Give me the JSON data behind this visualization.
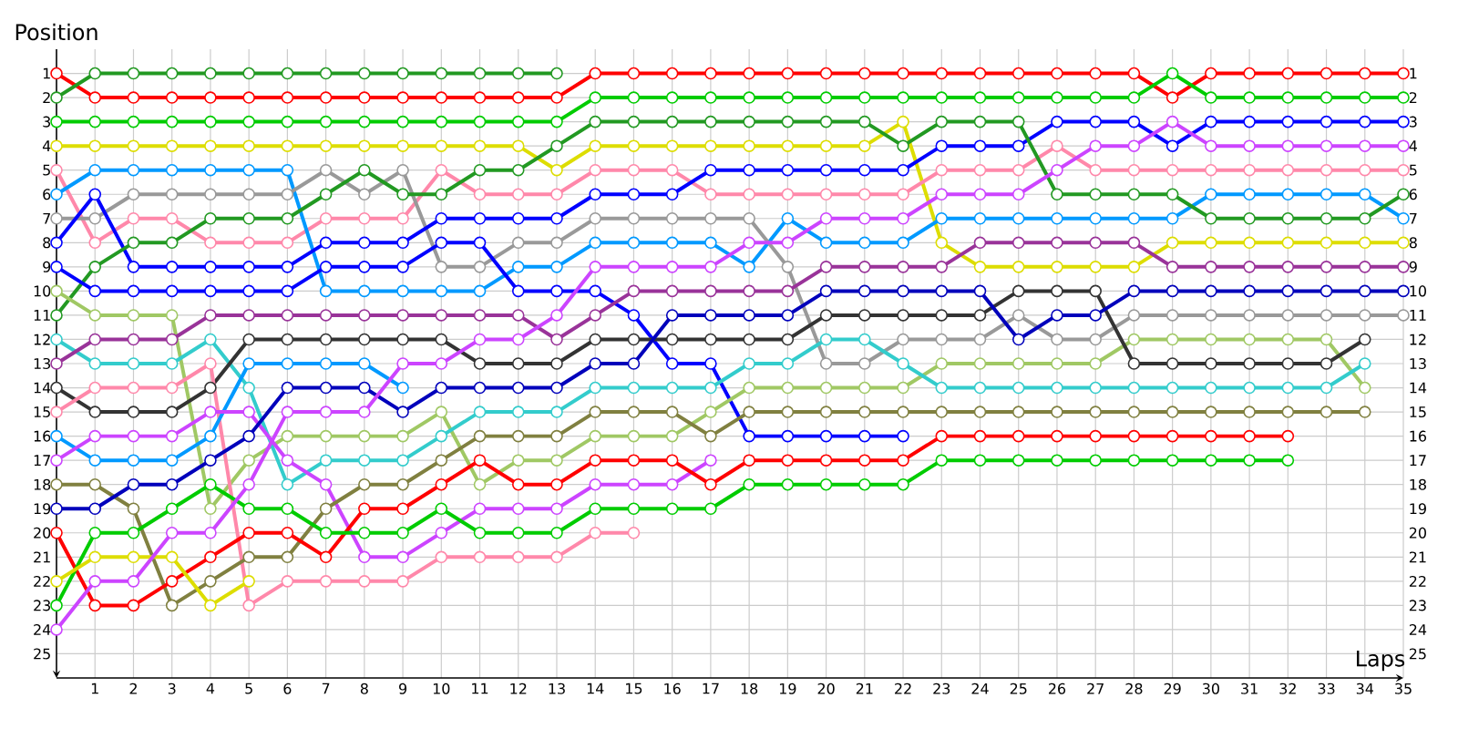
{
  "chart_data": {
    "type": "line",
    "xlabel": "Laps",
    "ylabel": "Position",
    "x": [
      0,
      1,
      2,
      3,
      4,
      5,
      6,
      7,
      8,
      9,
      10,
      11,
      12,
      13,
      14,
      15,
      16,
      17,
      18,
      19,
      20,
      21,
      22,
      23,
      24,
      25,
      26,
      27,
      28,
      29,
      30,
      31,
      32,
      33,
      34,
      35
    ],
    "xlim": [
      0,
      35
    ],
    "xticks": [
      1,
      2,
      3,
      4,
      5,
      6,
      7,
      8,
      9,
      10,
      11,
      12,
      13,
      14,
      15,
      16,
      17,
      18,
      19,
      20,
      21,
      22,
      23,
      24,
      25,
      26,
      27,
      28,
      29,
      30,
      31,
      32,
      33,
      34,
      35
    ],
    "ylim": [
      26,
      0
    ],
    "yticks": [
      1,
      2,
      3,
      4,
      5,
      6,
      7,
      8,
      9,
      10,
      11,
      12,
      13,
      14,
      15,
      16,
      17,
      18,
      19,
      20,
      21,
      22,
      23,
      24,
      25
    ],
    "y2lim": [
      26,
      0
    ],
    "y2ticks": [
      1,
      2,
      3,
      4,
      5,
      6,
      7,
      8,
      9,
      10,
      11,
      12,
      13,
      14,
      15,
      16,
      17,
      18,
      19,
      20,
      21,
      22,
      23,
      24,
      25
    ],
    "grid": true,
    "marker": "circle",
    "line_style": "solid",
    "series": [
      {
        "color": "#ff0000",
        "values": [
          1,
          2,
          2,
          2,
          2,
          2,
          2,
          2,
          2,
          2,
          2,
          2,
          2,
          2,
          1,
          1,
          1,
          1,
          1,
          1,
          1,
          1,
          1,
          1,
          1,
          1,
          1,
          1,
          1,
          2,
          1,
          1,
          1,
          1,
          1,
          1
        ]
      },
      {
        "color": "#229922",
        "values": [
          2,
          1,
          1,
          1,
          1,
          1,
          1,
          1,
          1,
          1,
          1,
          1,
          1,
          1,
          null,
          null,
          null,
          null,
          null,
          null,
          null,
          null,
          null,
          null,
          null,
          null,
          null,
          null,
          null,
          null,
          null,
          null,
          null,
          null,
          null,
          null
        ]
      },
      {
        "color": "#00cc00",
        "values": [
          3,
          3,
          3,
          3,
          3,
          3,
          3,
          3,
          3,
          3,
          3,
          3,
          3,
          3,
          2,
          2,
          2,
          2,
          2,
          2,
          2,
          2,
          2,
          2,
          2,
          2,
          2,
          2,
          2,
          1,
          2,
          2,
          2,
          2,
          2,
          2
        ]
      },
      {
        "color": "#dddd00",
        "values": [
          4,
          4,
          4,
          4,
          4,
          4,
          4,
          4,
          4,
          4,
          4,
          4,
          4,
          5,
          4,
          4,
          4,
          4,
          4,
          4,
          4,
          4,
          3,
          8,
          9,
          9,
          9,
          9,
          9,
          8,
          8,
          8,
          8,
          8,
          8,
          8
        ]
      },
      {
        "color": "#ff88aa",
        "values": [
          5,
          8,
          7,
          7,
          8,
          8,
          8,
          7,
          7,
          7,
          5,
          6,
          6,
          6,
          5,
          5,
          5,
          6,
          6,
          6,
          6,
          6,
          6,
          5,
          5,
          5,
          4,
          5,
          5,
          5,
          5,
          5,
          5,
          5,
          5,
          5
        ]
      },
      {
        "color": "#0099ff",
        "values": [
          6,
          5,
          5,
          5,
          5,
          5,
          5,
          10,
          10,
          10,
          10,
          10,
          9,
          9,
          8,
          8,
          8,
          8,
          9,
          7,
          8,
          8,
          8,
          7,
          7,
          7,
          7,
          7,
          7,
          7,
          6,
          6,
          6,
          6,
          6,
          7
        ]
      },
      {
        "color": "#999999",
        "values": [
          7,
          7,
          6,
          6,
          6,
          6,
          6,
          5,
          6,
          5,
          9,
          9,
          8,
          8,
          7,
          7,
          7,
          7,
          7,
          9,
          13,
          13,
          12,
          12,
          12,
          11,
          12,
          12,
          11,
          11,
          11,
          11,
          11,
          11,
          11,
          11
        ]
      },
      {
        "color": "#0000ff",
        "values": [
          8,
          6,
          9,
          9,
          9,
          9,
          9,
          8,
          8,
          8,
          7,
          7,
          7,
          7,
          6,
          6,
          6,
          5,
          5,
          5,
          5,
          5,
          5,
          4,
          4,
          4,
          3,
          3,
          3,
          4,
          3,
          3,
          3,
          3,
          3,
          3
        ]
      },
      {
        "color": "#229922",
        "values": [
          11,
          9,
          8,
          8,
          7,
          7,
          7,
          6,
          5,
          6,
          6,
          5,
          5,
          4,
          3,
          3,
          3,
          3,
          3,
          3,
          3,
          3,
          4,
          3,
          3,
          3,
          6,
          6,
          6,
          6,
          7,
          7,
          7,
          7,
          7,
          6
        ]
      },
      {
        "color": "#0000ff",
        "values": [
          9,
          10,
          10,
          10,
          10,
          10,
          10,
          9,
          9,
          9,
          8,
          8,
          10,
          10,
          10,
          11,
          13,
          13,
          16,
          16,
          16,
          16,
          16,
          null,
          null,
          null,
          null,
          null,
          null,
          null,
          null,
          null,
          null,
          null,
          null,
          null
        ]
      },
      {
        "color": "#a0c864",
        "values": [
          10,
          11,
          11,
          11,
          19,
          17,
          16,
          16,
          16,
          16,
          15,
          18,
          17,
          17,
          16,
          16,
          16,
          15,
          14,
          14,
          14,
          14,
          14,
          13,
          13,
          13,
          13,
          13,
          12,
          12,
          12,
          12,
          12,
          12,
          14,
          null
        ]
      },
      {
        "color": "#33cccc",
        "values": [
          12,
          13,
          13,
          13,
          12,
          14,
          18,
          17,
          17,
          17,
          16,
          15,
          15,
          15,
          14,
          14,
          14,
          14,
          13,
          13,
          12,
          12,
          13,
          14,
          14,
          14,
          14,
          14,
          14,
          14,
          14,
          14,
          14,
          14,
          13,
          null
        ]
      },
      {
        "color": "#993399",
        "values": [
          13,
          12,
          12,
          12,
          11,
          11,
          11,
          11,
          11,
          11,
          11,
          11,
          11,
          12,
          11,
          10,
          10,
          10,
          10,
          10,
          9,
          9,
          9,
          9,
          8,
          8,
          8,
          8,
          8,
          9,
          9,
          9,
          9,
          9,
          9,
          9
        ]
      },
      {
        "color": "#333333",
        "values": [
          14,
          15,
          15,
          15,
          14,
          12,
          12,
          12,
          12,
          12,
          12,
          13,
          13,
          13,
          12,
          12,
          12,
          12,
          12,
          12,
          11,
          11,
          11,
          11,
          11,
          10,
          10,
          10,
          13,
          13,
          13,
          13,
          13,
          13,
          12,
          null
        ]
      },
      {
        "color": "#ff88aa",
        "values": [
          15,
          14,
          14,
          14,
          13,
          23,
          22,
          22,
          22,
          22,
          21,
          21,
          21,
          21,
          20,
          20,
          null,
          null,
          null,
          null,
          null,
          null,
          null,
          null,
          null,
          null,
          null,
          null,
          null,
          null,
          null,
          null,
          null,
          null,
          null,
          null
        ]
      },
      {
        "color": "#0099ff",
        "values": [
          16,
          17,
          17,
          17,
          16,
          13,
          13,
          13,
          13,
          14,
          null,
          null,
          null,
          null,
          null,
          null,
          null,
          null,
          null,
          null,
          null,
          null,
          null,
          null,
          null,
          null,
          null,
          null,
          null,
          null,
          null,
          null,
          null,
          null,
          null,
          null
        ]
      },
      {
        "color": "#cc44ff",
        "values": [
          17,
          16,
          16,
          16,
          15,
          15,
          17,
          18,
          21,
          21,
          20,
          19,
          19,
          19,
          18,
          18,
          18,
          17,
          null,
          null,
          null,
          null,
          null,
          null,
          null,
          null,
          null,
          null,
          null,
          null,
          null,
          null,
          null,
          null,
          null,
          null
        ]
      },
      {
        "color": "#808040",
        "values": [
          18,
          18,
          19,
          23,
          22,
          21,
          21,
          19,
          18,
          18,
          17,
          16,
          16,
          16,
          15,
          15,
          15,
          16,
          15,
          15,
          15,
          15,
          15,
          15,
          15,
          15,
          15,
          15,
          15,
          15,
          15,
          15,
          15,
          15,
          15,
          null
        ]
      },
      {
        "color": "#0000bb",
        "values": [
          19,
          19,
          18,
          18,
          17,
          16,
          14,
          14,
          14,
          15,
          14,
          14,
          14,
          14,
          13,
          13,
          11,
          11,
          11,
          11,
          10,
          10,
          10,
          10,
          10,
          12,
          11,
          11,
          10,
          10,
          10,
          10,
          10,
          10,
          10,
          10
        ]
      },
      {
        "color": "#ff0000",
        "values": [
          20,
          23,
          23,
          22,
          21,
          20,
          20,
          21,
          19,
          19,
          18,
          17,
          18,
          18,
          17,
          17,
          17,
          18,
          17,
          17,
          17,
          17,
          17,
          16,
          16,
          16,
          16,
          16,
          16,
          16,
          16,
          16,
          16,
          null,
          null,
          null
        ]
      },
      {
        "color": "#00cc00",
        "values": [
          23,
          20,
          20,
          19,
          18,
          19,
          19,
          20,
          20,
          20,
          19,
          20,
          20,
          20,
          19,
          19,
          19,
          19,
          18,
          18,
          18,
          18,
          18,
          17,
          17,
          17,
          17,
          17,
          17,
          17,
          17,
          17,
          17,
          null,
          null,
          null
        ]
      },
      {
        "color": "#dddd00",
        "values": [
          22,
          21,
          21,
          21,
          23,
          22,
          null,
          null,
          null,
          null,
          null,
          null,
          null,
          null,
          null,
          null,
          null,
          null,
          null,
          null,
          null,
          null,
          null,
          null,
          null,
          null,
          null,
          null,
          null,
          null,
          null,
          null,
          null,
          null,
          null,
          null
        ]
      },
      {
        "color": "#cc44ff",
        "values": [
          24,
          22,
          22,
          20,
          20,
          18,
          15,
          15,
          15,
          13,
          13,
          12,
          12,
          11,
          9,
          9,
          9,
          9,
          8,
          8,
          7,
          7,
          7,
          6,
          6,
          6,
          5,
          4,
          4,
          3,
          4,
          4,
          4,
          4,
          4,
          4
        ]
      }
    ]
  }
}
